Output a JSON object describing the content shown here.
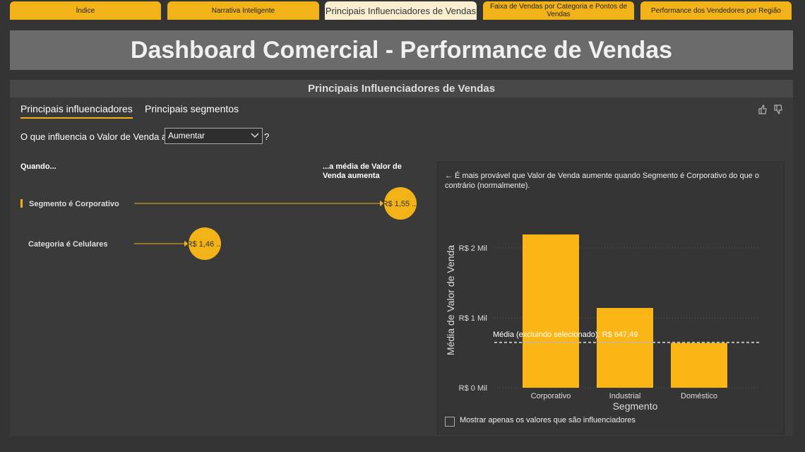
{
  "tabs": [
    "Índice",
    "Narrativa Inteligente",
    "Principais Influenciadores de Vendas",
    "Faixa de Vendas por Categoria e Pontos de Vendas",
    "Performance dos Vendedores por Região"
  ],
  "header": {
    "title": "Dashboard Comercial - Performance de Vendas",
    "subtitle": "Principais Influenciadores de Vendas"
  },
  "visual": {
    "tabs": [
      "Principais influenciadores",
      "Principais segmentos"
    ],
    "question": "O que influencia o Valor de Venda a",
    "dropdown": "Aumentar",
    "question_mark": "?",
    "when": "Quando...",
    "then": "...a média de Valor de Venda aumenta",
    "influencers": [
      {
        "label": "Segmento é Corporativo",
        "value": "R$ 1,55 ..."
      },
      {
        "label": "Categoria é Celulares",
        "value": "R$ 1,46 ..."
      }
    ],
    "explanation": "← É mais provável que Valor de Venda aumente quando Segmento é Corporativo do que o contrário (normalmente).",
    "checkbox": "Mostrar apenas os valores que são influenciadores"
  },
  "chart_data": {
    "type": "bar",
    "ylabel": "Média de Valor de Venda",
    "xlabel": "Segmento",
    "categories": [
      "Corporativo",
      "Industrial",
      "Doméstico"
    ],
    "values": [
      2190,
      1140,
      640
    ],
    "color": "#fbb615",
    "ylim": [
      0,
      2200
    ],
    "yticks": [
      {
        "value": 0,
        "label": "R$ 0 Mil"
      },
      {
        "value": 1000,
        "label": "R$ 1 Mil"
      },
      {
        "value": 2000,
        "label": "R$ 2 Mil"
      }
    ],
    "grid": true,
    "reference_line": {
      "value": 647.49,
      "label": "Média (excluindo selecionado): R$ 647,49"
    }
  }
}
